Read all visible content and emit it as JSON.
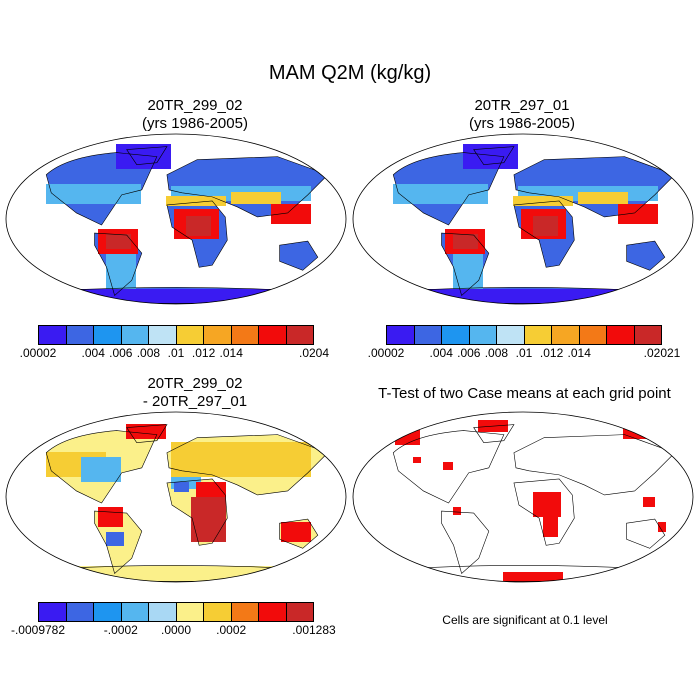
{
  "main_title": "MAM Q2M (kg/kg)",
  "panels": [
    {
      "title_line1": "20TR_299_02",
      "title_line2": "(yrs 1986-2005)"
    },
    {
      "title_line1": "20TR_297_01",
      "title_line2": "(yrs 1986-2005)"
    },
    {
      "title_line1": "20TR_299_02",
      "title_line2": "- 20TR_297_01"
    },
    {
      "title_line1": "T-Test of two Case means at each grid point",
      "title_line2": ""
    }
  ],
  "colorbars": [
    {
      "colors": [
        "#3a1bf2",
        "#3d66e3",
        "#1e95f0",
        "#55b6ef",
        "#bfe3f5",
        "#f6cd34",
        "#f6a623",
        "#f37917",
        "#f20b0b",
        "#c92828"
      ],
      "labels": [
        ".00002",
        ".004",
        ".006",
        ".008",
        ".01",
        ".012",
        ".014",
        ".0204"
      ]
    },
    {
      "colors": [
        "#3a1bf2",
        "#3d66e3",
        "#1e95f0",
        "#55b6ef",
        "#bfe3f5",
        "#f6cd34",
        "#f6a623",
        "#f37917",
        "#f20b0b",
        "#c92828"
      ],
      "labels": [
        ".00002",
        ".004",
        ".006",
        ".008",
        ".01",
        ".012",
        ".014",
        ".02021"
      ]
    },
    {
      "colors": [
        "#3a1bf2",
        "#3d66e3",
        "#1e95f0",
        "#55b6ef",
        "#a9d8f4",
        "#fbf08a",
        "#f6cd34",
        "#f37917",
        "#f20b0b",
        "#c92828"
      ],
      "labels": [
        "-.0009782",
        "-.0002",
        ".0000",
        ".0002",
        ".001283"
      ]
    }
  ],
  "note": "Cells are significant at 0.1 level"
}
